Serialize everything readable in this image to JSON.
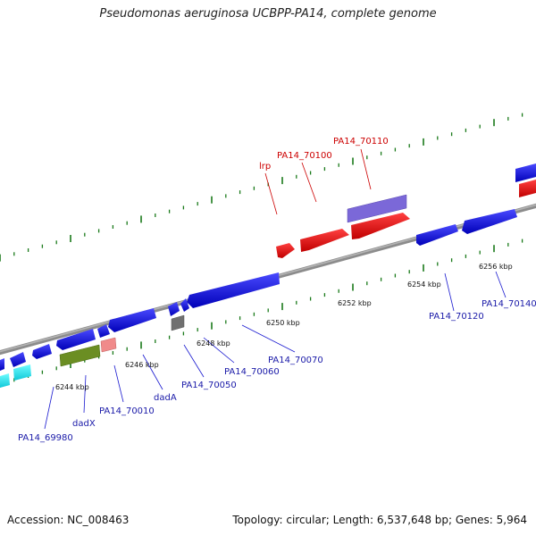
{
  "title": "Pseudomonas aeruginosa UCBPP-PA14, complete genome",
  "footer": {
    "accession": "Accession: NC_008463",
    "summary": "Topology: circular; Length: 6,537,648 bp; Genes: 5,964"
  },
  "scale_labels": [
    "6244 kbp",
    "6246 kbp",
    "6248 kbp",
    "6250 kbp",
    "6252 kbp",
    "6254 kbp",
    "6256 kbp"
  ],
  "gene_labels": {
    "pa14_69980": "PA14_69980",
    "dadx": "dadX",
    "pa14_70010": "PA14_70010",
    "dada": "dadA",
    "pa14_70050": "PA14_70050",
    "pa14_70060": "PA14_70060",
    "pa14_70070": "PA14_70070",
    "pa14_70120": "PA14_70120",
    "pa14_70140": "PA14_70140",
    "lrp": "lrp",
    "pa14_70100": "PA14_70100",
    "pa14_70110": "PA14_70110"
  },
  "colors": {
    "forward_cds": "#cc0000",
    "reverse_cds": "#1010cc",
    "label_forward": "#cc0000",
    "label_reverse": "#1a1aa8",
    "backbone": "#8c8c8c",
    "ticks": "#1a7a1a"
  }
}
